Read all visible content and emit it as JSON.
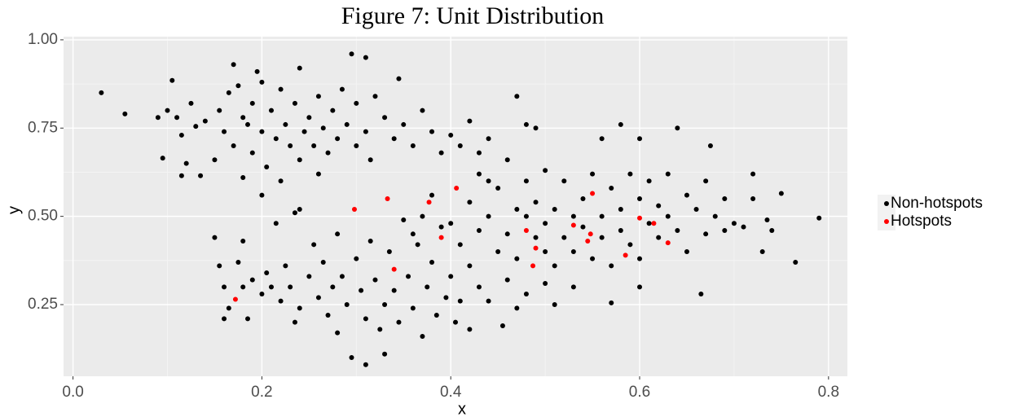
{
  "chart_data": {
    "type": "scatter",
    "title": "Figure 7: Unit Distribution",
    "x_label": "x",
    "y_label": "y",
    "xlim": [
      -0.01,
      0.82
    ],
    "ylim": [
      0.047,
      1.009
    ],
    "xticks": [
      {
        "value": 0,
        "label": "0.0"
      },
      0.2,
      0.4,
      0.6,
      0.8
    ],
    "yticks": [
      0.25,
      {
        "value": 0.5,
        "label": "0.50"
      },
      0.75,
      {
        "value": 1,
        "label": "1.00"
      }
    ],
    "grid": true,
    "legend": "right",
    "series": [
      {
        "name": "Non-hotspots",
        "color": "#000000",
        "x": [
          0.03,
          0.055,
          0.09,
          0.095,
          0.1,
          0.105,
          0.11,
          0.115,
          0.115,
          0.12,
          0.125,
          0.13,
          0.135,
          0.14,
          0.15,
          0.155,
          0.16,
          0.165,
          0.17,
          0.17,
          0.175,
          0.18,
          0.185,
          0.19,
          0.19,
          0.195,
          0.2,
          0.2,
          0.205,
          0.21,
          0.215,
          0.22,
          0.225,
          0.23,
          0.235,
          0.24,
          0.24,
          0.245,
          0.25,
          0.255,
          0.26,
          0.265,
          0.27,
          0.275,
          0.28,
          0.285,
          0.29,
          0.295,
          0.3,
          0.3,
          0.31,
          0.31,
          0.315,
          0.32,
          0.33,
          0.34,
          0.345,
          0.35,
          0.36,
          0.37,
          0.38,
          0.39,
          0.4,
          0.41,
          0.42,
          0.43,
          0.44,
          0.47,
          0.48,
          0.22,
          0.26,
          0.2,
          0.24,
          0.18,
          0.15,
          0.155,
          0.16,
          0.16,
          0.165,
          0.175,
          0.18,
          0.18,
          0.185,
          0.19,
          0.2,
          0.205,
          0.21,
          0.215,
          0.22,
          0.225,
          0.23,
          0.235,
          0.235,
          0.24,
          0.25,
          0.255,
          0.26,
          0.265,
          0.27,
          0.275,
          0.28,
          0.28,
          0.285,
          0.29,
          0.295,
          0.3,
          0.305,
          0.31,
          0.31,
          0.315,
          0.32,
          0.325,
          0.33,
          0.33,
          0.335,
          0.34,
          0.345,
          0.35,
          0.355,
          0.36,
          0.365,
          0.37,
          0.375,
          0.38,
          0.385,
          0.39,
          0.395,
          0.4,
          0.405,
          0.41,
          0.42,
          0.42,
          0.43,
          0.44,
          0.455,
          0.46,
          0.47,
          0.5,
          0.51,
          0.36,
          0.37,
          0.38,
          0.4,
          0.41,
          0.42,
          0.43,
          0.43,
          0.44,
          0.45,
          0.45,
          0.46,
          0.46,
          0.47,
          0.47,
          0.48,
          0.48,
          0.49,
          0.49,
          0.5,
          0.5,
          0.5,
          0.51,
          0.51,
          0.52,
          0.52,
          0.53,
          0.53,
          0.54,
          0.54,
          0.55,
          0.55,
          0.56,
          0.56,
          0.57,
          0.57,
          0.58,
          0.58,
          0.59,
          0.59,
          0.6,
          0.6,
          0.61,
          0.61,
          0.62,
          0.62,
          0.63,
          0.63,
          0.64,
          0.64,
          0.65,
          0.65,
          0.66,
          0.665,
          0.67,
          0.67,
          0.675,
          0.68,
          0.69,
          0.69,
          0.7,
          0.71,
          0.72,
          0.72,
          0.73,
          0.735,
          0.74,
          0.75,
          0.765,
          0.79,
          0.6,
          0.58,
          0.56,
          0.57,
          0.6,
          0.53,
          0.49,
          0.48,
          0.44
        ],
        "values": [
          0.85,
          0.79,
          0.78,
          0.665,
          0.8,
          0.885,
          0.78,
          0.73,
          0.615,
          0.65,
          0.82,
          0.755,
          0.615,
          0.77,
          0.66,
          0.8,
          0.74,
          0.85,
          0.93,
          0.7,
          0.87,
          0.78,
          0.76,
          0.68,
          0.82,
          0.91,
          0.74,
          0.88,
          0.64,
          0.8,
          0.72,
          0.86,
          0.76,
          0.7,
          0.82,
          0.92,
          0.66,
          0.74,
          0.78,
          0.7,
          0.84,
          0.75,
          0.68,
          0.8,
          0.72,
          0.86,
          0.76,
          0.96,
          0.7,
          0.82,
          0.74,
          0.95,
          0.66,
          0.84,
          0.78,
          0.72,
          0.89,
          0.76,
          0.7,
          0.8,
          0.74,
          0.68,
          0.73,
          0.7,
          0.77,
          0.68,
          0.72,
          0.84,
          0.76,
          0.6,
          0.62,
          0.56,
          0.52,
          0.61,
          0.44,
          0.36,
          0.3,
          0.21,
          0.24,
          0.37,
          0.43,
          0.3,
          0.21,
          0.32,
          0.28,
          0.34,
          0.3,
          0.48,
          0.26,
          0.36,
          0.3,
          0.2,
          0.51,
          0.24,
          0.33,
          0.42,
          0.27,
          0.37,
          0.22,
          0.3,
          0.45,
          0.17,
          0.33,
          0.25,
          0.1,
          0.38,
          0.29,
          0.21,
          0.08,
          0.43,
          0.32,
          0.18,
          0.25,
          0.11,
          0.4,
          0.29,
          0.2,
          0.49,
          0.33,
          0.24,
          0.42,
          0.16,
          0.3,
          0.37,
          0.22,
          0.47,
          0.27,
          0.33,
          0.2,
          0.26,
          0.18,
          0.36,
          0.3,
          0.26,
          0.19,
          0.32,
          0.24,
          0.31,
          0.25,
          0.45,
          0.5,
          0.56,
          0.48,
          0.42,
          0.54,
          0.62,
          0.46,
          0.5,
          0.4,
          0.58,
          0.45,
          0.66,
          0.52,
          0.38,
          0.5,
          0.6,
          0.44,
          0.54,
          0.48,
          0.4,
          0.63,
          0.52,
          0.36,
          0.44,
          0.6,
          0.5,
          0.4,
          0.55,
          0.47,
          0.62,
          0.38,
          0.5,
          0.44,
          0.58,
          0.36,
          0.52,
          0.46,
          0.62,
          0.42,
          0.55,
          0.38,
          0.48,
          0.6,
          0.44,
          0.53,
          0.5,
          0.62,
          0.46,
          0.75,
          0.56,
          0.4,
          0.52,
          0.28,
          0.6,
          0.45,
          0.7,
          0.5,
          0.55,
          0.46,
          0.48,
          0.47,
          0.62,
          0.55,
          0.4,
          0.49,
          0.46,
          0.565,
          0.37,
          0.495,
          0.72,
          0.76,
          0.72,
          0.255,
          0.3,
          0.3,
          0.75,
          0.28,
          0.6
        ]
      },
      {
        "name": "Hotspots",
        "color": "#ff0000",
        "x": [
          0.172,
          0.298,
          0.333,
          0.34,
          0.377,
          0.39,
          0.406,
          0.48,
          0.487,
          0.49,
          0.53,
          0.545,
          0.548,
          0.55,
          0.585,
          0.6,
          0.615,
          0.63
        ],
        "values": [
          0.265,
          0.52,
          0.55,
          0.35,
          0.54,
          0.44,
          0.58,
          0.46,
          0.36,
          0.41,
          0.475,
          0.43,
          0.45,
          0.565,
          0.39,
          0.495,
          0.48,
          0.425
        ]
      }
    ]
  }
}
